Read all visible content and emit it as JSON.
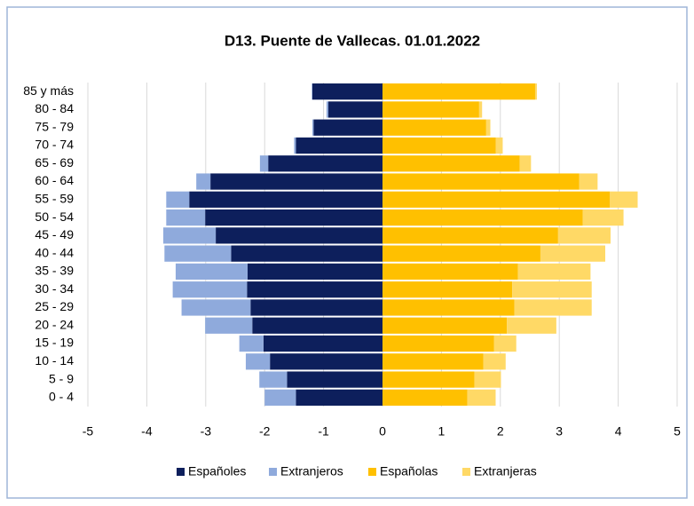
{
  "chart_data": {
    "type": "pyramid",
    "title": "D13. Puente de Vallecas. 01.01.2022",
    "categories": [
      "85 y más",
      "80 - 84",
      "75 - 79",
      "70 - 74",
      "65 - 69",
      "60 - 64",
      "55 - 59",
      "50 - 54",
      "45 - 49",
      "40 - 44",
      "35 - 39",
      "30 - 34",
      "25 - 29",
      "20 - 24",
      "15 - 19",
      "10 - 14",
      "5 - 9",
      "0 - 4"
    ],
    "series": [
      {
        "name": "Españoles",
        "color": "#0d1f5c",
        "values": [
          -1.19,
          -0.92,
          -1.17,
          -1.47,
          -1.94,
          -2.92,
          -3.28,
          -3.01,
          -2.83,
          -2.57,
          -2.29,
          -2.3,
          -2.24,
          -2.21,
          -2.02,
          -1.91,
          -1.62,
          -1.47
        ]
      },
      {
        "name": "Extranjeros",
        "color": "#8faadc",
        "values": [
          -0.01,
          -0.03,
          -0.02,
          -0.03,
          -0.14,
          -0.24,
          -0.39,
          -0.66,
          -0.89,
          -1.13,
          -1.22,
          -1.26,
          -1.17,
          -0.8,
          -0.41,
          -0.41,
          -0.47,
          -0.53
        ]
      },
      {
        "name": "Españolas",
        "color": "#ffc000",
        "values": [
          2.59,
          1.64,
          1.76,
          1.92,
          2.33,
          3.34,
          3.86,
          3.4,
          2.98,
          2.68,
          2.3,
          2.2,
          2.24,
          2.11,
          1.89,
          1.71,
          1.56,
          1.44
        ]
      },
      {
        "name": "Extranjeras",
        "color": "#ffd966",
        "values": [
          0.03,
          0.05,
          0.07,
          0.12,
          0.19,
          0.31,
          0.47,
          0.69,
          0.89,
          1.1,
          1.23,
          1.35,
          1.31,
          0.84,
          0.38,
          0.38,
          0.45,
          0.48
        ]
      }
    ],
    "xlim": [
      -5,
      5
    ],
    "xticks": [
      -5,
      -4,
      -3,
      -2,
      -1,
      0,
      1,
      2,
      3,
      4,
      5
    ],
    "grid": true,
    "legend": "bottom"
  }
}
